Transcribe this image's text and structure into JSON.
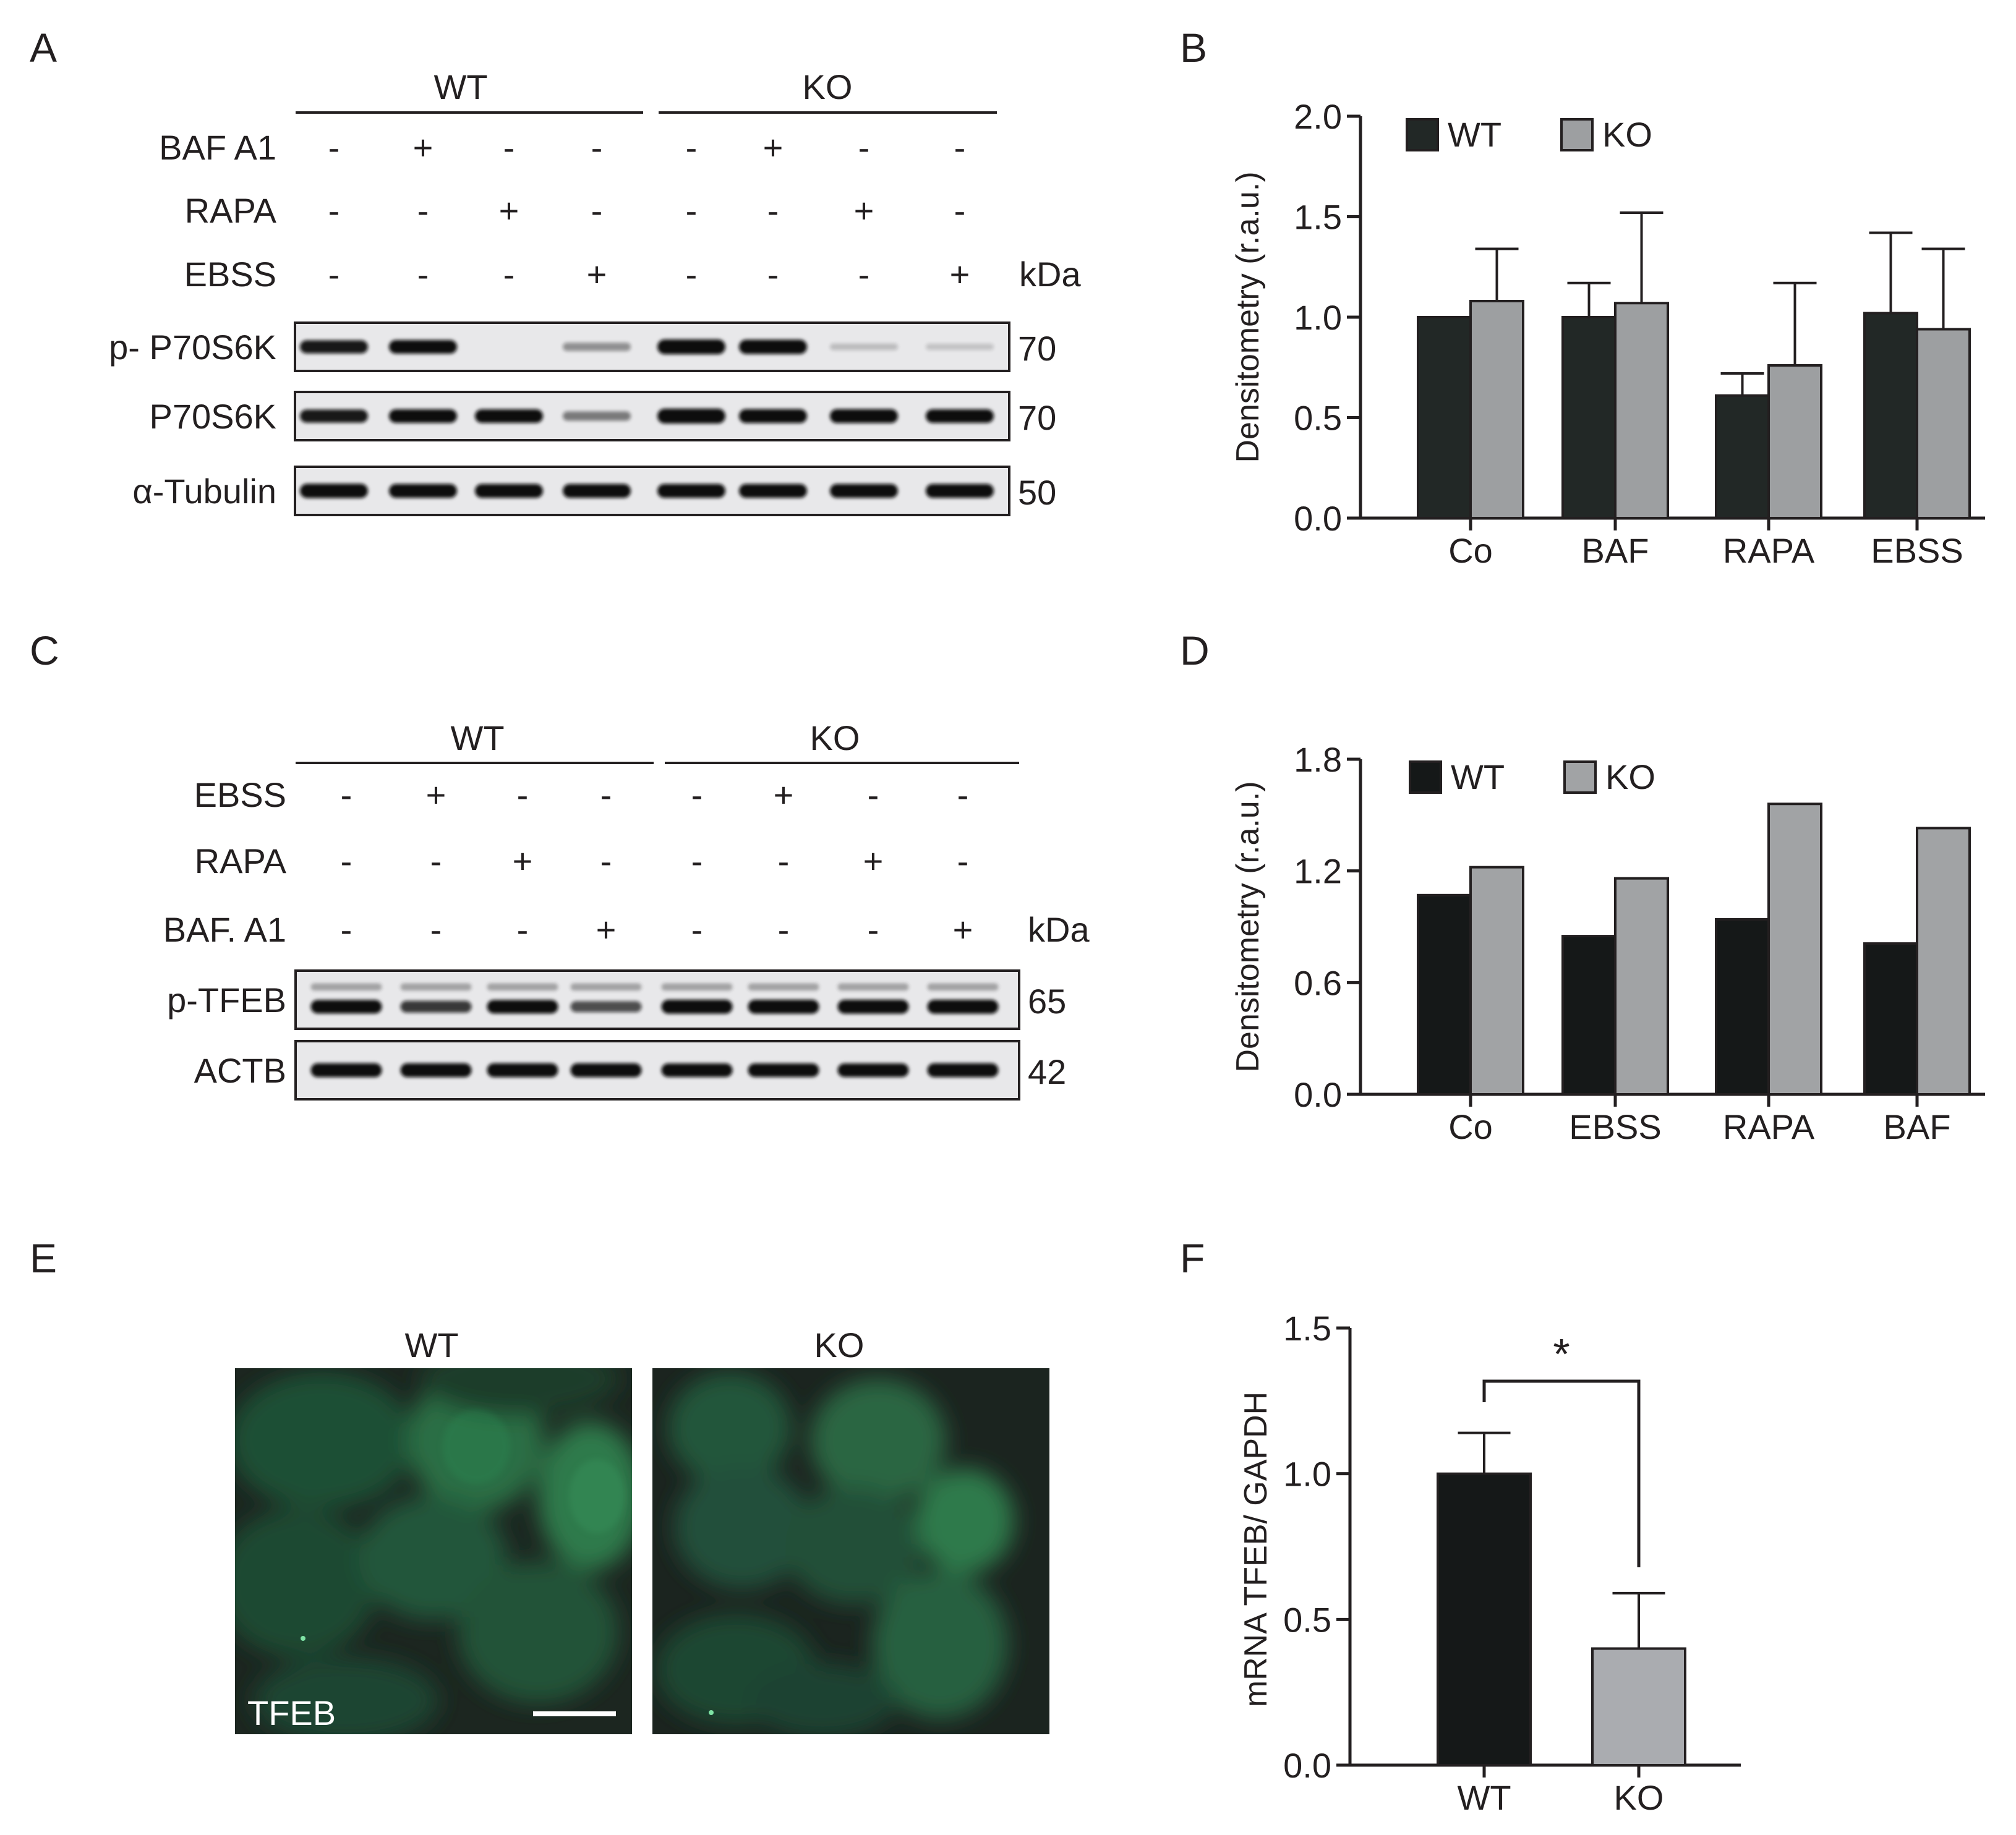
{
  "panels": {
    "A": "A",
    "B": "B",
    "C": "C",
    "D": "D",
    "E": "E",
    "F": "F"
  },
  "blot_A": {
    "groups": [
      "WT",
      "KO"
    ],
    "treatments": [
      {
        "name": "BAF A1",
        "signs": [
          "-",
          "+",
          "-",
          "-",
          "-",
          "+",
          "-",
          "-"
        ]
      },
      {
        "name": "RAPA",
        "signs": [
          "-",
          "-",
          "+",
          "-",
          "-",
          "-",
          "+",
          "-"
        ]
      },
      {
        "name": "EBSS",
        "signs": [
          "-",
          "-",
          "-",
          "+",
          "-",
          "-",
          "-",
          "+"
        ]
      }
    ],
    "unit": "kDa",
    "rows": [
      {
        "name": "p- P70S6K",
        "kda": "70",
        "intensity": [
          0.8,
          0.85,
          0.0,
          0.25,
          1.0,
          0.95,
          0.05,
          0.02
        ]
      },
      {
        "name": "P70S6K",
        "kda": "70",
        "intensity": [
          0.8,
          0.85,
          0.85,
          0.35,
          1.0,
          0.9,
          0.9,
          0.85
        ]
      },
      {
        "name": "α-Tubulin",
        "kda": "50",
        "intensity": [
          0.95,
          0.9,
          0.9,
          0.9,
          0.9,
          0.9,
          0.9,
          0.9
        ]
      }
    ]
  },
  "blot_C": {
    "groups": [
      "WT",
      "KO"
    ],
    "treatments": [
      {
        "name": "EBSS",
        "signs": [
          "-",
          "+",
          "-",
          "-",
          "-",
          "+",
          "-",
          "-"
        ]
      },
      {
        "name": "RAPA",
        "signs": [
          "-",
          "-",
          "+",
          "-",
          "-",
          "-",
          "+",
          "-"
        ]
      },
      {
        "name": "BAF. A1",
        "signs": [
          "-",
          "-",
          "-",
          "+",
          "-",
          "-",
          "-",
          "+"
        ]
      }
    ],
    "unit": "kDa",
    "rows": [
      {
        "name": "p-TFEB",
        "kda": "65",
        "intensity": [
          0.85,
          0.65,
          0.85,
          0.55,
          0.9,
          0.9,
          0.9,
          0.9
        ]
      },
      {
        "name": "ACTB",
        "kda": "42",
        "intensity": [
          0.9,
          0.9,
          0.9,
          0.9,
          0.85,
          0.85,
          0.85,
          0.9
        ]
      }
    ]
  },
  "image_E": {
    "labels": [
      "WT",
      "KO"
    ],
    "stain": "TFEB"
  },
  "chart_data": [
    {
      "type": "bar",
      "panel": "B",
      "categories": [
        "Co",
        "BAF",
        "RAPA",
        "EBSS"
      ],
      "series": [
        {
          "name": "WT",
          "values": [
            1.0,
            1.0,
            0.61,
            1.02
          ],
          "error": [
            0.0,
            0.17,
            0.11,
            0.4
          ]
        },
        {
          "name": "KO",
          "values": [
            1.08,
            1.07,
            0.76,
            0.94
          ],
          "error": [
            0.26,
            0.45,
            0.41,
            0.4
          ]
        }
      ],
      "ylabel": "Densitometry (r.a.u.)",
      "ylim": [
        0,
        2.0
      ],
      "yticks": [
        "0.0",
        "0.5",
        "1.0",
        "1.5",
        "2.0"
      ],
      "legend": "top-left",
      "colors": {
        "WT": "#222826",
        "KO": "#9d9fa1"
      }
    },
    {
      "type": "bar",
      "panel": "D",
      "categories": [
        "Co",
        "EBSS",
        "RAPA",
        "BAF"
      ],
      "series": [
        {
          "name": "WT",
          "values": [
            1.07,
            0.85,
            0.94,
            0.81
          ]
        },
        {
          "name": "KO",
          "values": [
            1.22,
            1.16,
            1.56,
            1.43
          ]
        }
      ],
      "ylabel": "Densitometry (r.a.u.)",
      "ylim": [
        0,
        1.8
      ],
      "yticks": [
        "0.0",
        "0.6",
        "1.2",
        "1.8"
      ],
      "legend": "top-left",
      "colors": {
        "WT": "#151818",
        "KO": "#a1a3a5"
      }
    },
    {
      "type": "bar",
      "panel": "F",
      "categories": [
        "WT",
        "KO"
      ],
      "values": [
        1.0,
        0.4
      ],
      "error": [
        0.14,
        0.19
      ],
      "ylabel": "mRNA TFEB/ GAPDH",
      "ylim": [
        0,
        1.5
      ],
      "yticks": [
        "0.0",
        "0.5",
        "1.0",
        "1.5"
      ],
      "significance": "*",
      "colors": {
        "WT": "#151818",
        "KO": "#aaacb0"
      }
    }
  ]
}
